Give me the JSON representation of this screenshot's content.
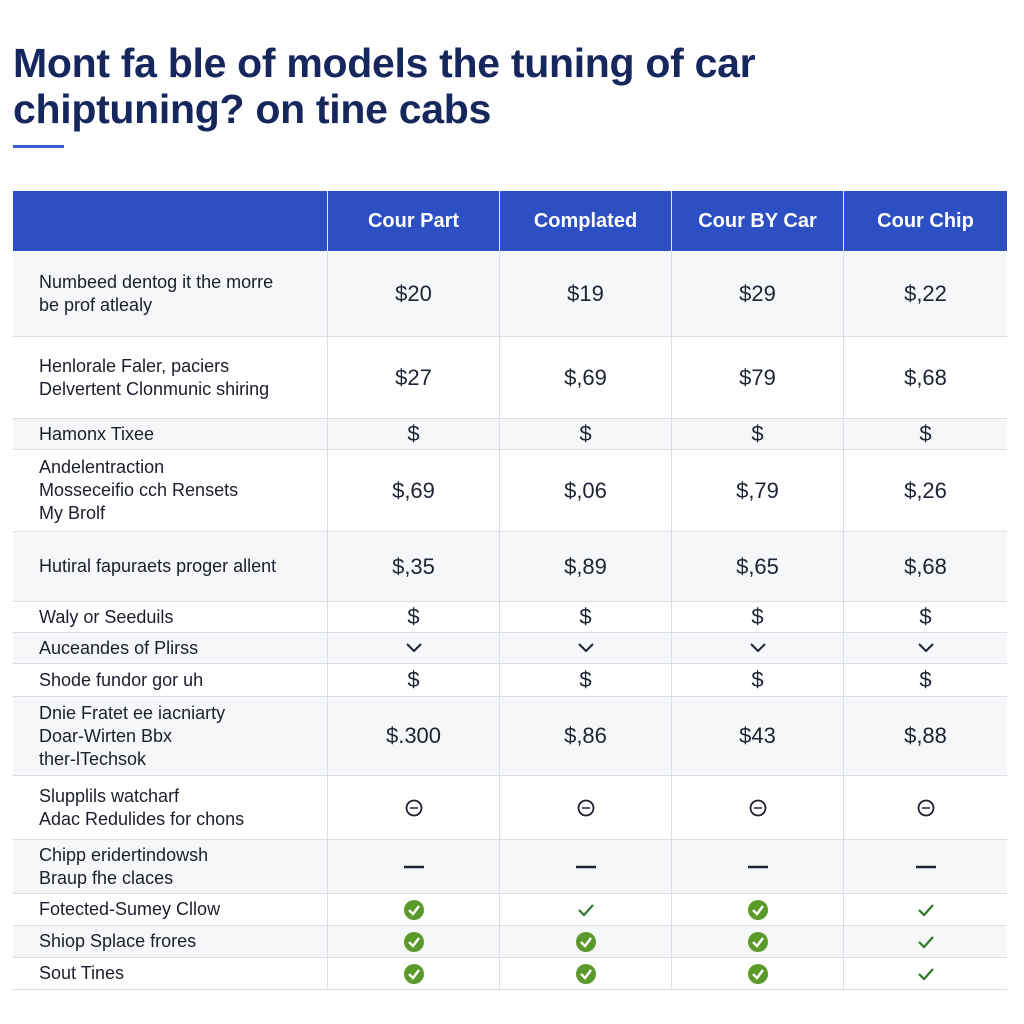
{
  "title": [
    "Mont fa ble of models the tuning of car",
    "chiptuning? on tine cabs"
  ],
  "table": {
    "columns": [
      "Cour Part",
      "Complated",
      "Cour BY Car",
      "Cour Chip"
    ],
    "rows": [
      {
        "label": [
          "Numbeed dentog it the morre",
          "be prof atlealy"
        ],
        "values": [
          "$20",
          "$19",
          "$29",
          "$,22"
        ]
      },
      {
        "label": [
          "Henlorale Faler, paciers",
          "Delvertent Clonmunic shiring"
        ],
        "values": [
          "$27",
          "$,69",
          "$79",
          "$,68"
        ]
      },
      {
        "label": [
          "Hamonx Tixee"
        ],
        "values": [
          "$",
          "$",
          "$",
          "$"
        ]
      },
      {
        "label": [
          "Andelentraction",
          "Mosseceifio cch Rensets",
          "My Brolf"
        ],
        "values": [
          "$,69",
          "$,06",
          "$,79",
          "$,26"
        ]
      },
      {
        "label": [
          "Hutiral fapuraets proger allent"
        ],
        "values": [
          "$,35",
          "$,89",
          "$,65",
          "$,68"
        ]
      },
      {
        "label": [
          "Waly or Seeduils"
        ],
        "values": [
          "$",
          "$",
          "$",
          "$"
        ]
      },
      {
        "label": [
          "Auceandes of Plirss"
        ]
      },
      {
        "label": [
          "Shode fundor gor uh"
        ],
        "values": [
          "$",
          "$",
          "$",
          "$"
        ]
      },
      {
        "label": [
          "Dnie Fratet ee iacniarty",
          "Doar-Wirten Bbx",
          "ther-lTechsok"
        ],
        "values": [
          "$.300",
          "$,86",
          "$43",
          "$,88"
        ]
      },
      {
        "label": [
          "Slupplils watcharf",
          "Adac Redulides for chons"
        ]
      },
      {
        "label": [
          "Chipp eridertindowsh",
          "Braup fhe claces"
        ]
      },
      {
        "label": [
          "Fotected-Sumey Cllow"
        ]
      },
      {
        "label": [
          "Shiop Splace frores"
        ]
      },
      {
        "label": [
          "Sout Tines"
        ]
      }
    ]
  }
}
